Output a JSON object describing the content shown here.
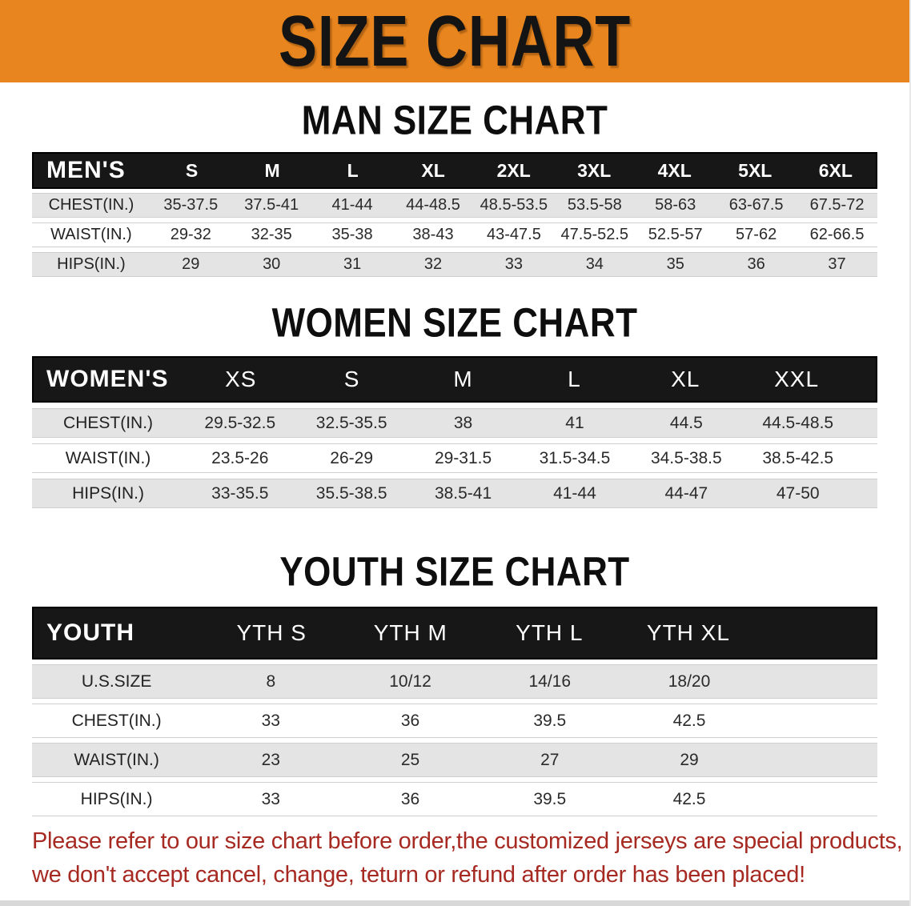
{
  "banner": {
    "title": "SIZE CHART"
  },
  "colors": {
    "banner_bg": "#E8851E",
    "table_header_bg": "#171717",
    "row_stripe_bg": "#E4E4E4",
    "disclaimer_color": "#A62A22"
  },
  "sections": [
    {
      "id": "men",
      "heading": "MAN SIZE CHART",
      "table": {
        "header_label": "MEN'S",
        "columns": [
          "S",
          "M",
          "L",
          "XL",
          "2XL",
          "3XL",
          "4XL",
          "5XL",
          "6XL"
        ],
        "rows": [
          {
            "label": "CHEST(IN.)",
            "values": [
              "35-37.5",
              "37.5-41",
              "41-44",
              "44-48.5",
              "48.5-53.5",
              "53.5-58",
              "58-63",
              "63-67.5",
              "67.5-72"
            ]
          },
          {
            "label": "WAIST(IN.)",
            "values": [
              "29-32",
              "32-35",
              "35-38",
              "38-43",
              "43-47.5",
              "47.5-52.5",
              "52.5-57",
              "57-62",
              "62-66.5"
            ]
          },
          {
            "label": "HIPS(IN.)",
            "values": [
              "29",
              "30",
              "31",
              "32",
              "33",
              "34",
              "35",
              "36",
              "37"
            ]
          }
        ]
      }
    },
    {
      "id": "women",
      "heading": "WOMEN SIZE CHART",
      "table": {
        "header_label": "WOMEN'S",
        "columns": [
          "XS",
          "S",
          "M",
          "L",
          "XL",
          "XXL"
        ],
        "rows": [
          {
            "label": "CHEST(IN.)",
            "values": [
              "29.5-32.5",
              "32.5-35.5",
              "38",
              "41",
              "44.5",
              "44.5-48.5"
            ]
          },
          {
            "label": "WAIST(IN.)",
            "values": [
              "23.5-26",
              "26-29",
              "29-31.5",
              "31.5-34.5",
              "34.5-38.5",
              "38.5-42.5"
            ]
          },
          {
            "label": "HIPS(IN.)",
            "values": [
              "33-35.5",
              "35.5-38.5",
              "38.5-41",
              "41-44",
              "44-47",
              "47-50"
            ]
          }
        ]
      }
    },
    {
      "id": "youth",
      "heading": "YOUTH SIZE CHART",
      "table": {
        "header_label": "YOUTH",
        "columns": [
          "YTH S",
          "YTH M",
          "YTH L",
          "YTH XL"
        ],
        "rows": [
          {
            "label": "U.S.SIZE",
            "values": [
              "8",
              "10/12",
              "14/16",
              "18/20"
            ]
          },
          {
            "label": "CHEST(IN.)",
            "values": [
              "33",
              "36",
              "39.5",
              "42.5"
            ]
          },
          {
            "label": "WAIST(IN.)",
            "values": [
              "23",
              "25",
              "27",
              "29"
            ]
          },
          {
            "label": "HIPS(IN.)",
            "values": [
              "33",
              "36",
              "39.5",
              "42.5"
            ]
          }
        ]
      }
    }
  ],
  "disclaimer": {
    "line1": "Please refer to our size chart before order,the customized jerseys are special products,",
    "line2": "we don't accept cancel, change, teturn or refund after order has been placed!"
  }
}
